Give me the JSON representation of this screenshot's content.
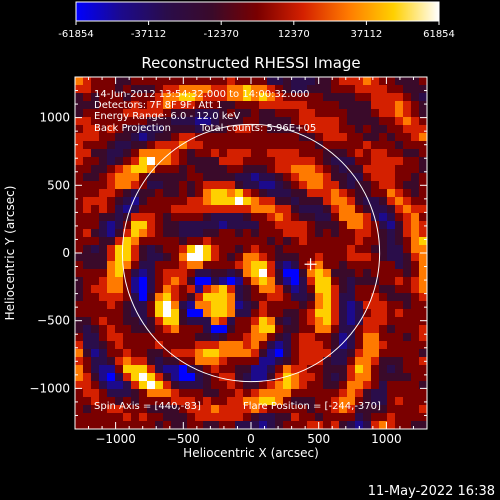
{
  "footer_timestamp": "11-May-2022 16:38",
  "colors": {
    "background": "#000000",
    "foreground": "#ffffff",
    "colormap": [
      "#0000ff",
      "#1c0a8c",
      "#2a0d4a",
      "#3a0a2a",
      "#7a0000",
      "#d42000",
      "#ff7a00",
      "#ffd000",
      "#ffffff"
    ]
  },
  "colorbar": {
    "min": -61854,
    "max": 61854,
    "tick_labels": [
      "-61854",
      "-37112",
      "-12370",
      "12370",
      "37112",
      "61854"
    ]
  },
  "chart_data": {
    "type": "heatmap",
    "title": "Reconstructed RHESSI Image",
    "xlabel": "Heliocentric X (arcsec)",
    "ylabel": "Heliocentric Y (arcsec)",
    "xlim": [
      -1300,
      1300
    ],
    "ylim": [
      -1300,
      1300
    ],
    "x_ticks": [
      -1000,
      -500,
      0,
      500,
      1000
    ],
    "y_ticks": [
      -1000,
      -500,
      0,
      500,
      1000
    ],
    "x_tick_labels": [
      "−1000",
      "−500",
      "0",
      "500",
      "1000"
    ],
    "y_tick_labels": [
      "−1000",
      "−500",
      "0",
      "500",
      "1000"
    ],
    "info_lines": [
      "14-Jun-2012 13:54:32.000 to 14:00:32.000",
      "Detectors: 7F 8F 9F, Att 1",
      "Energy Range: 6.0 - 12.0 keV"
    ],
    "method": "Back Projection",
    "total_counts": "Total counts: 5.96E+05",
    "spin_axis": "Spin Axis = [440,-83]",
    "flare_position": "Flare Position = [-244,-370]",
    "spin_axis_value": [
      440,
      -83
    ],
    "flare_position_value": [
      -244,
      -370
    ],
    "solar_limb_radius_arcsec": 950,
    "grid": false
  }
}
